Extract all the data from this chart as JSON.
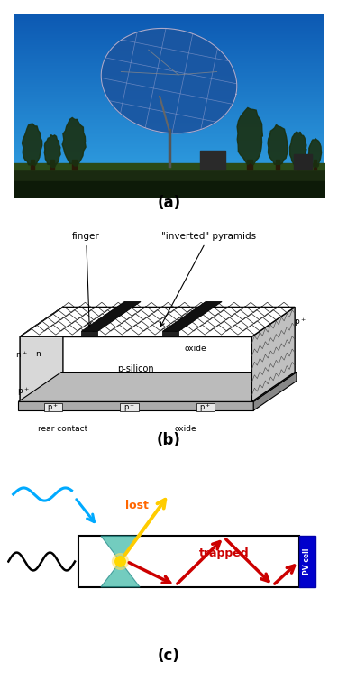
{
  "fig_width": 3.75,
  "fig_height": 7.65,
  "dpi": 100,
  "panel_a_label": "(a)",
  "panel_b_label": "(b)",
  "panel_c_label": "(c)",
  "label_fontsize": 12,
  "label_fontweight": "bold",
  "lost_arrow_color": "#ffc000",
  "lost_label_color": "#ff6600",
  "trapped_arrow_color": "#cc0000",
  "trapped_label_color": "#cc0000",
  "pvcell_color": "#0000cc",
  "incoming_wave_color": "#00aaff",
  "fiber_wave_color": "#000000",
  "fluorophore_color": "#ffd700",
  "cone_color": "#55bbaa",
  "rear_contact_label": "rear contact",
  "oxide_label_b": "oxide",
  "finger_label": "finger",
  "inverted_pyramids_label": "\"inverted\" pyramids",
  "n_plus_label": "n$^+$",
  "n_label": "n",
  "p_silicon_label": "p-silicon",
  "oxide_label_side": "oxide",
  "pv_cell_text": "PV cell",
  "lost_text": "lost",
  "trapped_text": "trapped"
}
